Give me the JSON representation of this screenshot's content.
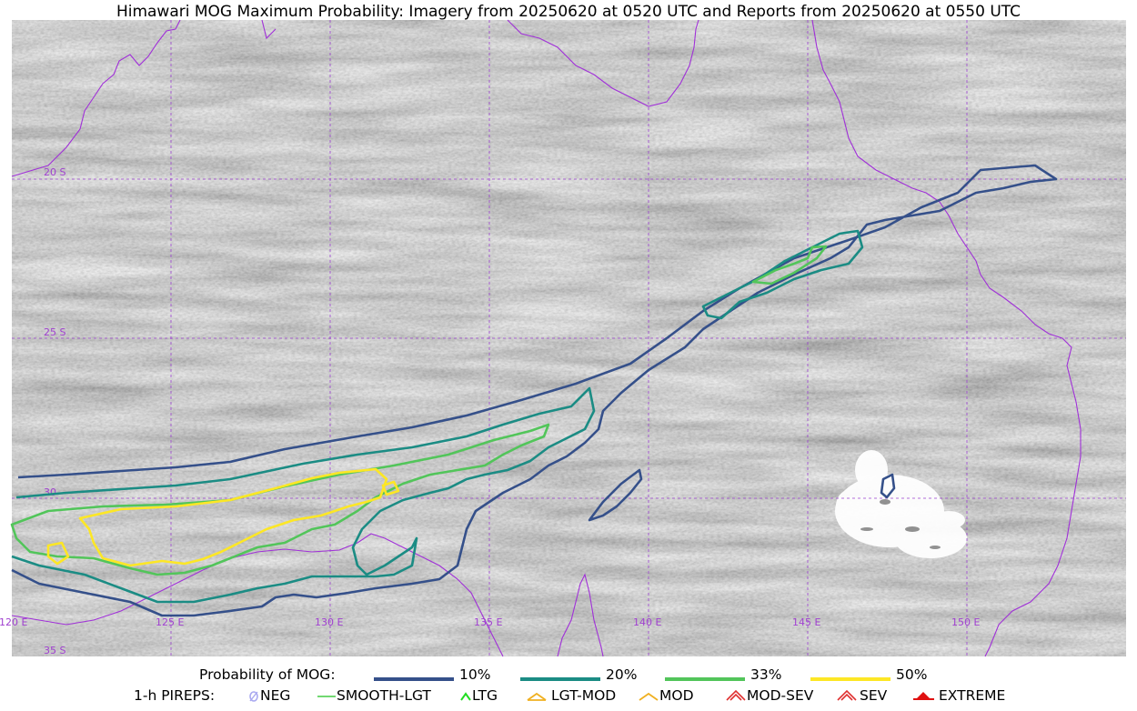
{
  "title": "Himawari MOG Maximum Probability: Imagery from 20250620 at 0520 UTC and Reports from 20250620 at 0550 UTC",
  "grid": {
    "lon_labels": [
      "120 E",
      "125 E",
      "130 E",
      "135 E",
      "140 E",
      "145 E",
      "150 E"
    ],
    "lat_labels": [
      "20 S",
      "25 S",
      "30",
      "35 S"
    ]
  },
  "colors": {
    "p10": "#35508a",
    "p20": "#1b8c84",
    "p33": "#52c55a",
    "p50": "#fde725",
    "coast": "#a030d8",
    "grid": "#9a40d0"
  },
  "legend": {
    "probability_label": "Probability of MOG:",
    "levels": [
      "10%",
      "20%",
      "33%",
      "50%"
    ],
    "pireps_label": "1-h PIREPS:",
    "pireps": [
      {
        "label": "NEG",
        "icon": "neg-icon"
      },
      {
        "label": "SMOOTH-LGT",
        "icon": "smooth-lgt-icon"
      },
      {
        "label": "LTG",
        "icon": "ltg-icon"
      },
      {
        "label": "LGT-MOD",
        "icon": "lgt-mod-icon"
      },
      {
        "label": "MOD",
        "icon": "mod-icon"
      },
      {
        "label": "MOD-SEV",
        "icon": "mod-sev-icon"
      },
      {
        "label": "SEV",
        "icon": "sev-icon"
      },
      {
        "label": "EXTREME",
        "icon": "extreme-icon"
      }
    ]
  }
}
